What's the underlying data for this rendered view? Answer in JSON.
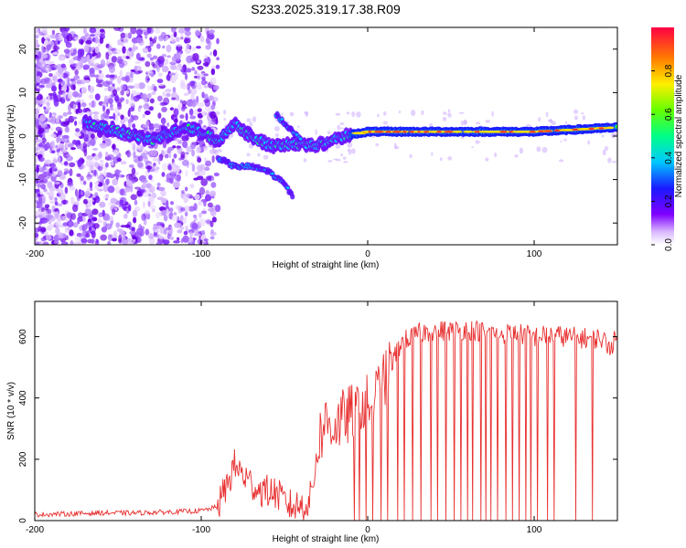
{
  "chart_data": [
    {
      "type": "heatmap",
      "title": "S233.2025.319.17.38.R09",
      "xlabel": "Height of straight line (km)",
      "ylabel": "Frequency (Hz)",
      "xlim": [
        -200,
        150
      ],
      "ylim": [
        -25,
        25
      ],
      "x_ticks": [
        -200,
        -100,
        0,
        100
      ],
      "x_tick_labels": [
        "-200",
        "-100",
        "0",
        "100"
      ],
      "y_ticks": [
        -20,
        -10,
        0,
        10,
        20
      ],
      "y_tick_labels": [
        "-20",
        "-10",
        "0",
        "10",
        "20"
      ],
      "colorbar": {
        "label": "Normalized spectral amplitude",
        "range": [
          0,
          1
        ],
        "ticks": [
          0,
          0.2,
          0.4,
          0.6,
          0.8
        ],
        "tick_labels": [
          "0.0",
          "0.2",
          "0.4",
          "0.6",
          "0.8"
        ],
        "colormap": "rainbow"
      },
      "ridge_frequency_hz": [
        {
          "x": -170,
          "y": 3
        },
        {
          "x": -160,
          "y": 2
        },
        {
          "x": -150,
          "y": 1
        },
        {
          "x": -140,
          "y": 0
        },
        {
          "x": -130,
          "y": -1
        },
        {
          "x": -110,
          "y": 2
        },
        {
          "x": -100,
          "y": 1
        },
        {
          "x": -90,
          "y": -1
        },
        {
          "x": -80,
          "y": 3
        },
        {
          "x": -70,
          "y": 0
        },
        {
          "x": -60,
          "y": -2
        },
        {
          "x": -45,
          "y": -2
        },
        {
          "x": -30,
          "y": -2
        },
        {
          "x": -15,
          "y": 0
        },
        {
          "x": 0,
          "y": 1
        },
        {
          "x": 50,
          "y": 1
        },
        {
          "x": 100,
          "y": 1
        },
        {
          "x": 150,
          "y": 2
        }
      ],
      "secondary_branch_hz": [
        {
          "x": -90,
          "y": -5
        },
        {
          "x": -80,
          "y": -7
        },
        {
          "x": -70,
          "y": -7
        },
        {
          "x": -60,
          "y": -8
        },
        {
          "x": -50,
          "y": -11
        },
        {
          "x": -45,
          "y": -14
        }
      ],
      "upper_branch_hz": [
        {
          "x": -55,
          "y": 5
        },
        {
          "x": -50,
          "y": 3
        },
        {
          "x": -45,
          "y": 1
        },
        {
          "x": -40,
          "y": -1
        }
      ]
    },
    {
      "type": "line",
      "xlabel": "Height of straight line (km)",
      "ylabel": "SNR (10 * v/v)",
      "xlim": [
        -200,
        150
      ],
      "ylim": [
        0,
        715
      ],
      "x_ticks": [
        -200,
        -100,
        0,
        100
      ],
      "x_tick_labels": [
        "-200",
        "-100",
        "0",
        "100"
      ],
      "y_ticks": [
        0,
        200,
        400,
        600
      ],
      "y_tick_labels": [
        "0",
        "200",
        "400",
        "600"
      ],
      "color": "#e83030",
      "series": [
        {
          "name": "SNR",
          "x": [
            -200,
            -180,
            -160,
            -140,
            -120,
            -100,
            -90,
            -85,
            -80,
            -75,
            -70,
            -65,
            -60,
            -55,
            -50,
            -45,
            -40,
            -35,
            -32,
            -30,
            -27,
            -25,
            -20,
            -15,
            -10,
            -5,
            0,
            5,
            10,
            15,
            20,
            30,
            40,
            50,
            60,
            70,
            80,
            90,
            100,
            110,
            120,
            130,
            140,
            145,
            150
          ],
          "values": [
            20,
            22,
            25,
            25,
            28,
            32,
            45,
            110,
            180,
            150,
            120,
            100,
            95,
            90,
            60,
            45,
            50,
            60,
            150,
            250,
            300,
            320,
            310,
            330,
            350,
            370,
            380,
            410,
            450,
            520,
            580,
            610,
            620,
            620,
            625,
            615,
            610,
            610,
            600,
            605,
            600,
            595,
            595,
            570,
            590
          ]
        }
      ],
      "dropouts_x": [
        -8,
        -5,
        -1,
        3,
        8,
        12,
        18,
        22,
        27,
        32,
        38,
        42,
        47,
        52,
        56,
        60,
        63,
        68,
        71,
        74,
        78,
        83,
        87,
        91,
        95,
        98,
        102,
        108,
        112,
        125,
        135
      ]
    }
  ]
}
